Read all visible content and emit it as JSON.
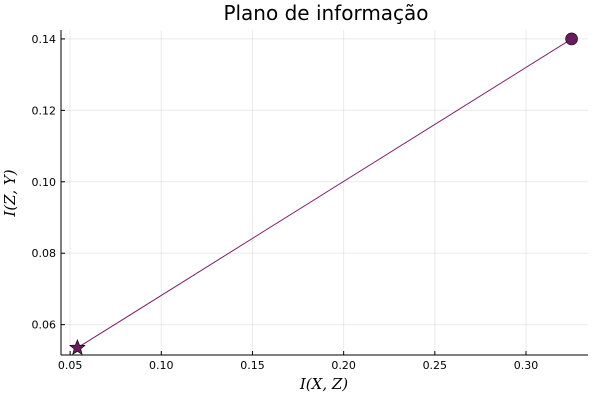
{
  "chart_data": {
    "type": "line",
    "title": "Plano de informação",
    "xlabel": "I(X, Z)",
    "ylabel": "I(Z, Y)",
    "xlim": [
      0.045,
      0.334
    ],
    "ylim": [
      0.0515,
      0.1425
    ],
    "xticks": [
      0.05,
      0.1,
      0.15,
      0.2,
      0.25,
      0.3
    ],
    "xtick_labels": [
      "0.05",
      "0.10",
      "0.15",
      "0.20",
      "0.25",
      "0.30"
    ],
    "yticks": [
      0.06,
      0.08,
      0.1,
      0.12,
      0.14
    ],
    "ytick_labels": [
      "0.06",
      "0.08",
      "0.10",
      "0.12",
      "0.14"
    ],
    "grid": true,
    "series": [
      {
        "x": [
          0.054,
          0.325
        ],
        "y": [
          0.0535,
          0.14
        ],
        "color": "#7b1f6a",
        "marker_color": "#6b1a5e",
        "start_marker": "star",
        "end_marker": "circle"
      }
    ]
  }
}
